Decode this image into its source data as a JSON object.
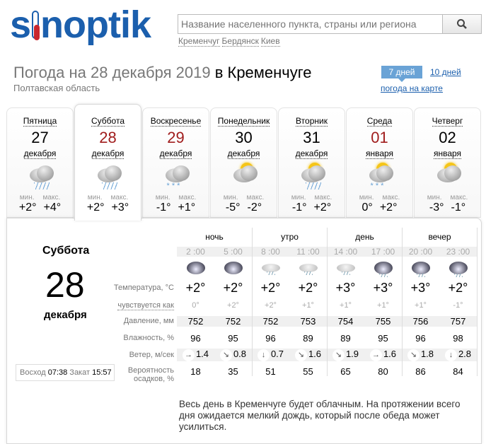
{
  "header": {
    "logo": "sinoptik",
    "search_placeholder": "Название населенного пункта, страны или региона",
    "recent": [
      "Кременчуг",
      "Бердянск",
      "Киев"
    ]
  },
  "title": {
    "prefix": "Погода на 28 декабря 2019",
    "city": "в Кременчуге",
    "region": "Полтавская область"
  },
  "nav": {
    "days7": "7 дней",
    "days10": "10 дней",
    "map": "погода на карте"
  },
  "colors": {
    "brand": "#1b5fad",
    "holiday": "#a01c1c",
    "tab_active": "#6aa3d6"
  },
  "days": [
    {
      "name": "Пятница",
      "date": "27",
      "month": "декабря",
      "icon": "cloudy-rain-icon",
      "min_label": "мин.",
      "max_label": "макс.",
      "min": "+2°",
      "max": "+4°",
      "red": false
    },
    {
      "name": "Суббота",
      "date": "28",
      "month": "декабря",
      "icon": "cloudy-rain-icon",
      "min_label": "мин.",
      "max_label": "макс.",
      "min": "+2°",
      "max": "+3°",
      "red": true,
      "selected": true
    },
    {
      "name": "Воскресенье",
      "date": "29",
      "month": "декабря",
      "icon": "cloudy-snow-icon",
      "min_label": "мин.",
      "max_label": "макс.",
      "min": "-1°",
      "max": "+1°",
      "red": true
    },
    {
      "name": "Понедельник",
      "date": "30",
      "month": "декабря",
      "icon": "sun-cloud-icon",
      "min_label": "мин.",
      "max_label": "макс.",
      "min": "-5°",
      "max": "-2°",
      "red": false
    },
    {
      "name": "Вторник",
      "date": "31",
      "month": "декабря",
      "icon": "sun-cloud-rain-icon",
      "min_label": "мин.",
      "max_label": "макс.",
      "min": "-1°",
      "max": "+2°",
      "red": false
    },
    {
      "name": "Среда",
      "date": "01",
      "month": "января",
      "icon": "sun-cloud-snow-icon",
      "min_label": "мин.",
      "max_label": "макс.",
      "min": "0°",
      "max": "+2°",
      "red": true
    },
    {
      "name": "Четверг",
      "date": "02",
      "month": "января",
      "icon": "sun-cloud-icon",
      "min_label": "мин.",
      "max_label": "макс.",
      "min": "-3°",
      "max": "-1°",
      "red": false
    }
  ],
  "detail": {
    "day": "Суббота",
    "date": "28",
    "month": "декабря",
    "sunrise_label": "Восход",
    "sunrise": "07:38",
    "sunset_label": "Закат",
    "sunset": "15:57",
    "periods": [
      "ночь",
      "утро",
      "день",
      "вечер"
    ],
    "times": [
      "2 :00",
      "5 :00",
      "8 :00",
      "11 :00",
      "14 :00",
      "17 :00",
      "20 :00",
      "23 :00"
    ],
    "icons": [
      "overcast-icon",
      "overcast-icon",
      "light-rain-icon",
      "light-rain-icon",
      "light-rain-icon",
      "overcast-rain-icon",
      "overcast-rain-icon",
      "overcast-rain-icon"
    ],
    "labels": {
      "temp": "Температура, °C",
      "feels": "чувствуется как",
      "pressure": "Давление, мм",
      "humidity": "Влажность, %",
      "wind": "Ветер, м/сек",
      "precip1": "Вероятность",
      "precip2": "осадков, %"
    },
    "temp": [
      "+2°",
      "+2°",
      "+2°",
      "+2°",
      "+3°",
      "+3°",
      "+3°",
      "+2°"
    ],
    "feels": [
      "0°",
      "+2°",
      "+2°",
      "+1°",
      "+1°",
      "+1°",
      "+1°",
      "-1°"
    ],
    "pressure": [
      "752",
      "752",
      "752",
      "753",
      "754",
      "755",
      "756",
      "757"
    ],
    "humidity": [
      "96",
      "95",
      "96",
      "89",
      "89",
      "95",
      "96",
      "98"
    ],
    "wind_dir": [
      "→",
      "↘",
      "↓",
      "↘",
      "↘",
      "→",
      "↘",
      "↓"
    ],
    "wind": [
      "1.4",
      "0.8",
      "0.7",
      "1.6",
      "1.9",
      "1.6",
      "1.8",
      "2.8"
    ],
    "precip": [
      "18",
      "35",
      "51",
      "55",
      "65",
      "80",
      "86",
      "84"
    ],
    "description": "Весь день в Кременчуге будет облачным. На протяжении всего дня ожидается мелкий дождь, который после обеда может усилиться."
  }
}
